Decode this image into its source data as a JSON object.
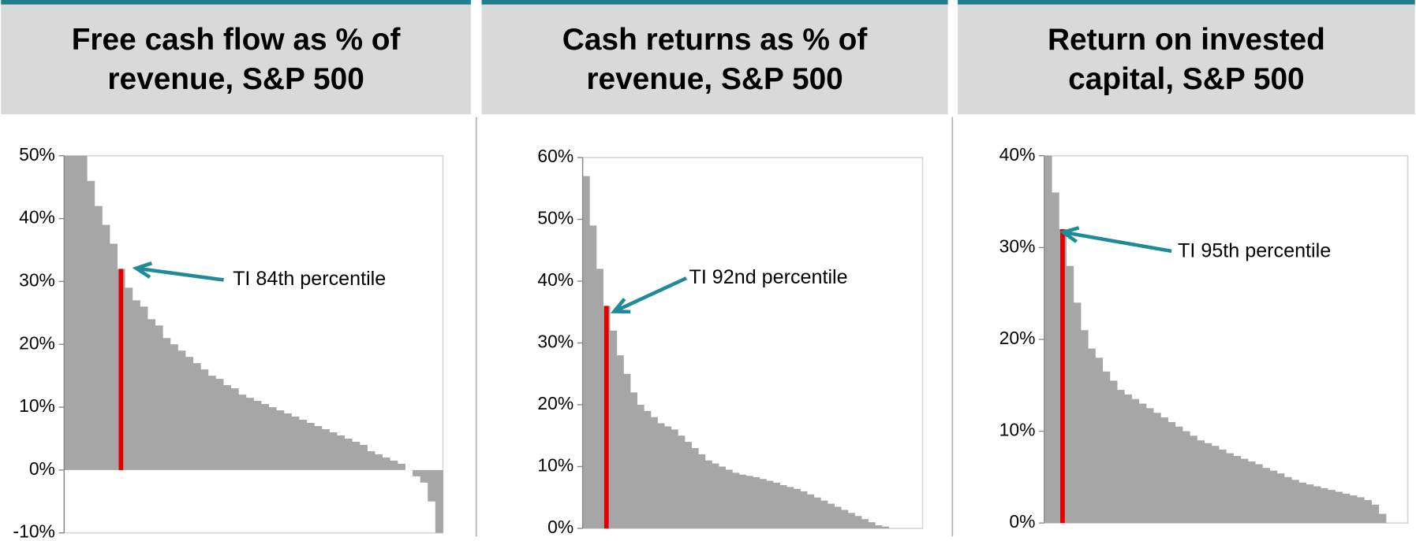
{
  "chart_data": [
    {
      "type": "bar",
      "title": [
        "Free cash flow as % of",
        "revenue, S&P 500"
      ],
      "ylim": [
        -10,
        50
      ],
      "yticks": [
        {
          "value": -10,
          "label": "-10%"
        },
        {
          "value": 0,
          "label": "0%"
        },
        {
          "value": 10,
          "label": "10%"
        },
        {
          "value": 20,
          "label": "20%"
        },
        {
          "value": 30,
          "label": "30%"
        },
        {
          "value": 40,
          "label": "40%"
        },
        {
          "value": 50,
          "label": "50%"
        }
      ],
      "series": [
        {
          "color": "#a6a6a6",
          "values": [
            50,
            50,
            50,
            46,
            42,
            39,
            36,
            32,
            29,
            27,
            26,
            24,
            23,
            21,
            20,
            19,
            18,
            17,
            16,
            15,
            14.5,
            13.5,
            13,
            12,
            11.5,
            11,
            10.5,
            10,
            9.5,
            9,
            8.5,
            8,
            7.5,
            7,
            6.5,
            6,
            5.5,
            5,
            4.5,
            4,
            3,
            2.5,
            2,
            1.5,
            1,
            0,
            -1,
            -2,
            -5,
            -10
          ]
        },
        {
          "color": "#e00000",
          "values": [
            null,
            null,
            null,
            null,
            null,
            null,
            null,
            32,
            null,
            null,
            null,
            null,
            null,
            null,
            null,
            null,
            null,
            null,
            null,
            null,
            null,
            null,
            null,
            null,
            null,
            null,
            null,
            null,
            null,
            null,
            null,
            null,
            null,
            null,
            null,
            null,
            null,
            null,
            null,
            null,
            null,
            null,
            null,
            null,
            null,
            null,
            null,
            null,
            null,
            null
          ]
        }
      ],
      "annotation": "TI 84th percentile"
    },
    {
      "type": "bar",
      "title": [
        "Cash returns as % of",
        "revenue, S&P 500"
      ],
      "ylim": [
        0,
        60
      ],
      "yticks": [
        {
          "value": 0,
          "label": "0%"
        },
        {
          "value": 10,
          "label": "10%"
        },
        {
          "value": 20,
          "label": "20%"
        },
        {
          "value": 30,
          "label": "30%"
        },
        {
          "value": 40,
          "label": "40%"
        },
        {
          "value": 50,
          "label": "50%"
        },
        {
          "value": 60,
          "label": "60%"
        }
      ],
      "series": [
        {
          "color": "#a6a6a6",
          "values": [
            57,
            49,
            42,
            36,
            32,
            28,
            25,
            22,
            20,
            19,
            18,
            17,
            16.5,
            16,
            15,
            14,
            13,
            12,
            11,
            10.5,
            10,
            9.5,
            9,
            8.7,
            8.5,
            8.3,
            8,
            7.7,
            7.4,
            7,
            6.7,
            6.4,
            6,
            5.5,
            5,
            4.5,
            4,
            3.5,
            3,
            2.5,
            2,
            1.5,
            1,
            0.5,
            0.3,
            0,
            0,
            0,
            0,
            0
          ]
        },
        {
          "color": "#e00000",
          "values": [
            null,
            null,
            null,
            36,
            null,
            null,
            null,
            null,
            null,
            null,
            null,
            null,
            null,
            null,
            null,
            null,
            null,
            null,
            null,
            null,
            null,
            null,
            null,
            null,
            null,
            null,
            null,
            null,
            null,
            null,
            null,
            null,
            null,
            null,
            null,
            null,
            null,
            null,
            null,
            null,
            null,
            null,
            null,
            null,
            null,
            null,
            null,
            null,
            null,
            null
          ]
        }
      ],
      "annotation": "TI 92nd percentile"
    },
    {
      "type": "bar",
      "title": [
        "Return on invested",
        "capital, S&P 500"
      ],
      "ylim": [
        0,
        40
      ],
      "yticks": [
        {
          "value": 0,
          "label": "0%"
        },
        {
          "value": 10,
          "label": "10%"
        },
        {
          "value": 20,
          "label": "20%"
        },
        {
          "value": 30,
          "label": "30%"
        },
        {
          "value": 40,
          "label": "40%"
        }
      ],
      "series": [
        {
          "color": "#a6a6a6",
          "values": [
            40,
            36,
            32,
            28,
            24,
            21,
            19,
            18,
            16.5,
            15.5,
            14.5,
            14,
            13.5,
            13,
            12.5,
            12,
            11.5,
            11,
            10.5,
            10,
            9.5,
            9,
            8.7,
            8.4,
            8,
            7.6,
            7.3,
            7,
            6.7,
            6.4,
            6,
            5.7,
            5.4,
            5,
            4.7,
            4.4,
            4.2,
            4,
            3.8,
            3.6,
            3.4,
            3.2,
            3,
            2.8,
            2.5,
            2,
            1,
            0,
            0,
            0
          ]
        },
        {
          "color": "#e00000",
          "values": [
            null,
            null,
            32,
            null,
            null,
            null,
            null,
            null,
            null,
            null,
            null,
            null,
            null,
            null,
            null,
            null,
            null,
            null,
            null,
            null,
            null,
            null,
            null,
            null,
            null,
            null,
            null,
            null,
            null,
            null,
            null,
            null,
            null,
            null,
            null,
            null,
            null,
            null,
            null,
            null,
            null,
            null,
            null,
            null,
            null,
            null,
            null,
            null,
            null,
            null
          ]
        }
      ],
      "annotation": "TI 95th percentile"
    }
  ]
}
